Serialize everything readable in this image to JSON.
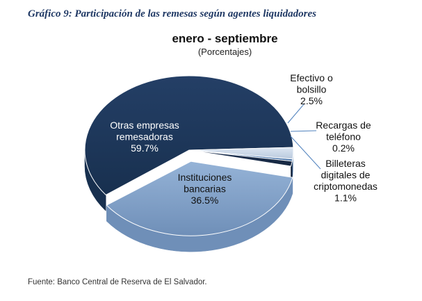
{
  "header": {
    "figure_title": "Gráfico 9: Participación de las remesas según agentes liquidadores"
  },
  "footer": {
    "source": "Fuente: Banco Central de Reserva de El Salvador."
  },
  "chart_data": {
    "type": "pie",
    "title": "enero - septiembre",
    "subtitle": "(Porcentajes)",
    "unit": "%",
    "three_d": true,
    "slices": [
      {
        "name": "Otras empresas remesadoras",
        "label_lines": [
          "Otras empresas",
          "remesadoras"
        ],
        "value": 59.7,
        "value_label": "59.7%",
        "color": "#243f66",
        "side": "#18304f",
        "text": "#ffffff",
        "label": "inside",
        "exploded": false
      },
      {
        "name": "Efectivo o bolsillo",
        "label_lines": [
          "Efectivo o",
          "bolsillo"
        ],
        "value": 2.5,
        "value_label": "2.5%",
        "color": "#dce6f2",
        "side": "#b9c9dd",
        "text": "#111111",
        "label": "outside",
        "exploded": false
      },
      {
        "name": "Recargas de teléfono",
        "label_lines": [
          "Recargas de",
          "teléfono"
        ],
        "value": 0.2,
        "value_label": "0.2%",
        "color": "#4f81bd",
        "side": "#3a669c",
        "text": "#111111",
        "label": "outside",
        "exploded": false
      },
      {
        "name": "Billeteras digitales de criptomonedas",
        "label_lines": [
          "Billeteras",
          "digitales de",
          "criptomonedas"
        ],
        "value": 1.1,
        "value_label": "1.1%",
        "color": "#1f3456",
        "side": "#15263f",
        "text": "#111111",
        "label": "outside",
        "exploded": false
      },
      {
        "name": "Instituciones bancarias",
        "label_lines": [
          "Instituciones",
          "bancarias"
        ],
        "value": 36.5,
        "value_label": "36.5%",
        "color": "#95b3d7",
        "side": "#6f8fb8",
        "text": "#111111",
        "label": "inside",
        "exploded": true
      }
    ]
  }
}
